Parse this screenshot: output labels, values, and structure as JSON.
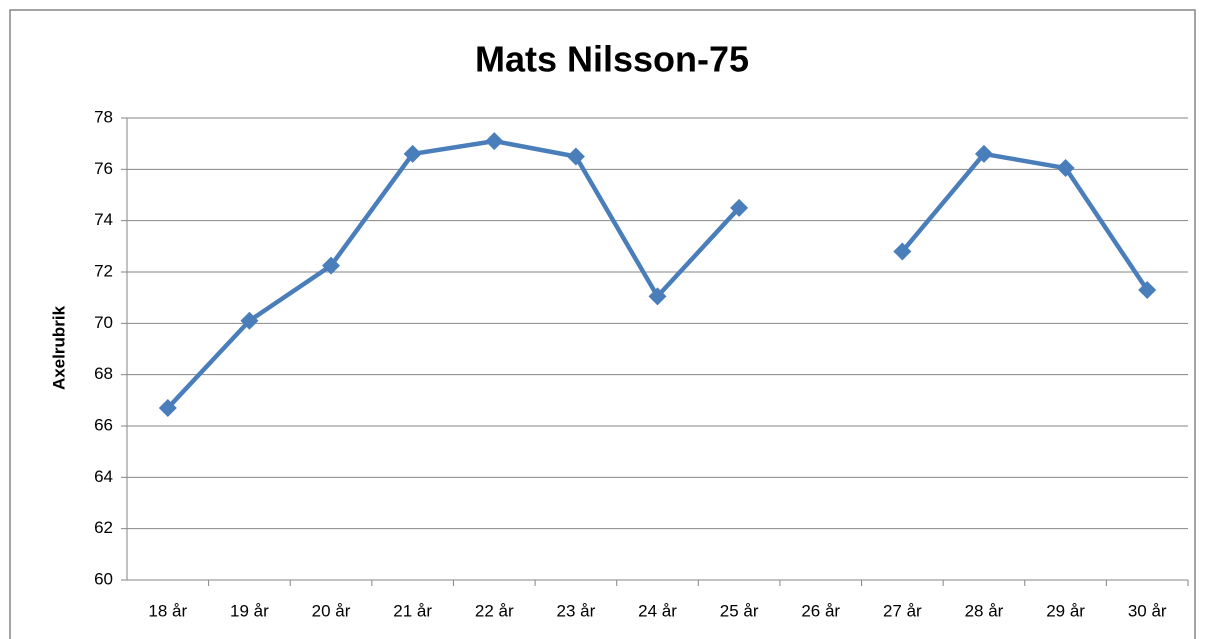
{
  "chart_data": {
    "type": "line",
    "title": "Mats Nilsson-75",
    "y_label": "Axelrubrik",
    "categories": [
      "18 år",
      "19 år",
      "20 år",
      "21 år",
      "22 år",
      "23 år",
      "24 år",
      "25 år",
      "26 år",
      "27 år",
      "28 år",
      "29 år",
      "30 år"
    ],
    "values": [
      66.7,
      70.1,
      72.25,
      76.6,
      77.1,
      76.5,
      71.05,
      74.5,
      null,
      72.8,
      76.6,
      76.05,
      71.3
    ],
    "color": "#4a7ebb",
    "ylim": [
      60,
      78
    ],
    "yticks": [
      60,
      62,
      64,
      66,
      68,
      70,
      72,
      74,
      76,
      78
    ],
    "grid": true
  }
}
